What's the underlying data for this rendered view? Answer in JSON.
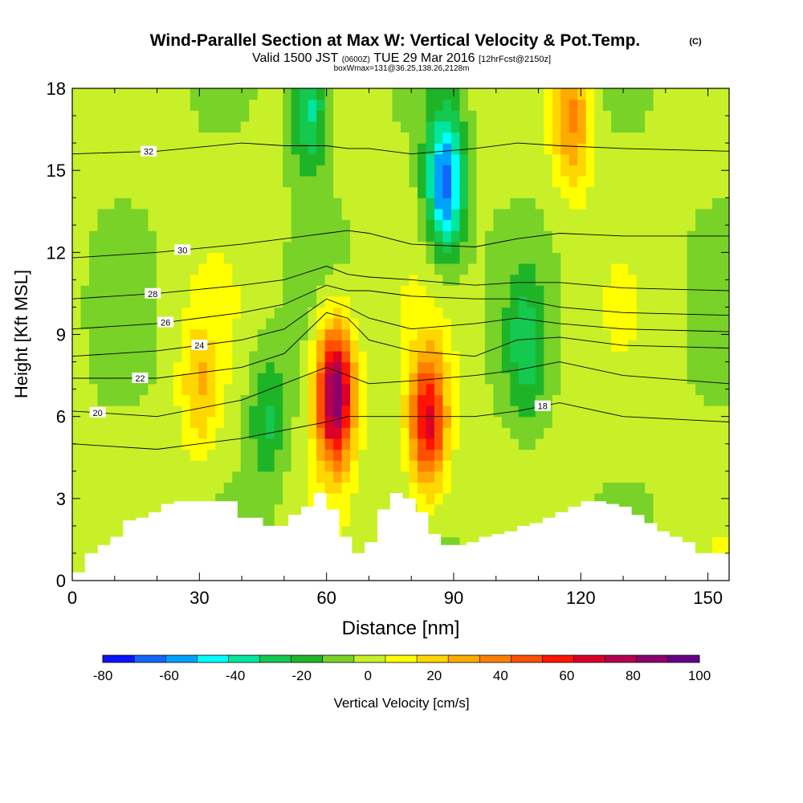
{
  "header": {
    "title_main": "Wind-Parallel Section at Max W: Vertical Velocity & Pot.Temp.",
    "title_tag": "(C)",
    "valid_prefix": "Valid 1500 JST",
    "valid_utc": "(0600Z)",
    "valid_date": "TUE 29 Mar 2016",
    "valid_fcst": "[12hrFcst@2150z]",
    "box_info": "boxWmax=131@36.25,138.26,2128m"
  },
  "chart_data": {
    "type": "heatmap",
    "xlabel": "Distance [nm]",
    "ylabel": "Height [Kft MSL]",
    "xlim": [
      0,
      155
    ],
    "ylim": [
      0,
      18
    ],
    "x_ticks": [
      "0",
      "30",
      "60",
      "90",
      "120",
      "150"
    ],
    "y_ticks": [
      "0",
      "3",
      "6",
      "9",
      "12",
      "15",
      "18"
    ],
    "colorbar": {
      "label": "Vertical Velocity [cm/s]",
      "tick_labels": [
        "-80",
        "-60",
        "-40",
        "-20",
        "0",
        "20",
        "40",
        "60",
        "80",
        "100"
      ],
      "levels": [
        -80,
        -70,
        -60,
        -50,
        -40,
        -30,
        -20,
        -10,
        0,
        10,
        20,
        30,
        40,
        50,
        60,
        70,
        80,
        90,
        100
      ],
      "colors": [
        "#0a14ff",
        "#1464ff",
        "#00a0ff",
        "#00ffff",
        "#00e6a0",
        "#14c850",
        "#1eb428",
        "#78d228",
        "#c8f028",
        "#ffff00",
        "#ffd700",
        "#ffaa00",
        "#ff8000",
        "#ff5000",
        "#ff1400",
        "#dc0028",
        "#b40050",
        "#8c006e",
        "#64008c"
      ]
    },
    "vertical_velocity_features": [
      {
        "x": 62,
        "z": 6.8,
        "w": 100
      },
      {
        "x": 84,
        "z": 5.8,
        "w": 70
      },
      {
        "x": 56,
        "z": 17.5,
        "w": -40
      },
      {
        "x": 88,
        "z": 14.5,
        "w": -70
      },
      {
        "x": 30,
        "z": 7,
        "w": 25
      },
      {
        "x": 118,
        "z": 17,
        "w": 40
      },
      {
        "x": 107,
        "z": 8.5,
        "w": -25
      },
      {
        "x": 46,
        "z": 6,
        "w": -25
      }
    ],
    "terrain": {
      "x": [
        0,
        3,
        6,
        9,
        12,
        15,
        18,
        21,
        24,
        27,
        30,
        33,
        36,
        39,
        42,
        45,
        48,
        51,
        54,
        57,
        60,
        63,
        66,
        69,
        72,
        75,
        78,
        81,
        84,
        87,
        90,
        93,
        96,
        99,
        102,
        105,
        108,
        111,
        114,
        117,
        120,
        123,
        126,
        129,
        132,
        135,
        138,
        141,
        144,
        147,
        150,
        153,
        155
      ],
      "z": [
        0.3,
        1.0,
        1.3,
        1.6,
        2.2,
        2.3,
        2.5,
        2.8,
        2.9,
        2.9,
        2.9,
        2.9,
        2.9,
        2.3,
        2.3,
        2.0,
        2.0,
        2.4,
        2.7,
        3.2,
        2.6,
        1.6,
        1.0,
        1.4,
        2.6,
        3.2,
        3.0,
        2.5,
        1.7,
        1.3,
        1.3,
        1.4,
        1.6,
        1.7,
        1.8,
        2.0,
        2.1,
        2.3,
        2.5,
        2.7,
        2.9,
        2.9,
        2.8,
        2.7,
        2.4,
        2.1,
        1.8,
        1.6,
        1.4,
        1.0,
        1.0,
        1.0,
        1.0
      ]
    },
    "theta_contours": {
      "x": [
        0,
        20,
        40,
        50,
        60,
        65,
        70,
        80,
        95,
        105,
        115,
        130,
        155
      ],
      "levels": [
        {
          "value": 18,
          "label": "18",
          "label_x": 111,
          "z": [
            5.0,
            4.8,
            5.2,
            5.5,
            5.8,
            6.0,
            6.0,
            6.0,
            6.0,
            6.2,
            6.5,
            6.0,
            5.8
          ]
        },
        {
          "value": 20,
          "label": "20",
          "label_x": 6,
          "z": [
            6.2,
            6.0,
            6.6,
            7.2,
            7.8,
            7.5,
            7.2,
            7.3,
            7.5,
            7.7,
            8.0,
            7.5,
            7.2
          ]
        },
        {
          "value": 22,
          "label": "22",
          "label_x": 16,
          "z": [
            7.4,
            7.4,
            7.8,
            8.3,
            9.8,
            9.6,
            8.8,
            8.4,
            8.2,
            8.8,
            8.9,
            8.6,
            8.5
          ]
        },
        {
          "value": 24,
          "label": "24",
          "label_x": 30,
          "z": [
            8.2,
            8.4,
            8.8,
            9.2,
            10.3,
            10.0,
            9.6,
            9.2,
            9.4,
            9.6,
            9.4,
            9.2,
            9.1
          ]
        },
        {
          "value": 26,
          "label": "26",
          "label_x": 22,
          "z": [
            9.2,
            9.4,
            9.8,
            10.1,
            10.8,
            10.6,
            10.6,
            10.4,
            10.3,
            10.3,
            10.0,
            9.8,
            9.7
          ]
        },
        {
          "value": 28,
          "label": "28",
          "label_x": 19,
          "z": [
            10.3,
            10.5,
            10.8,
            11.0,
            11.5,
            11.2,
            11.1,
            11.0,
            10.8,
            10.9,
            10.9,
            10.7,
            10.6
          ]
        },
        {
          "value": 30,
          "label": "30",
          "label_x": 26,
          "z": [
            11.8,
            12.0,
            12.3,
            12.5,
            12.7,
            12.8,
            12.7,
            12.3,
            12.2,
            12.5,
            12.7,
            12.6,
            12.6
          ]
        },
        {
          "value": 32,
          "label": "32",
          "label_x": 18,
          "z": [
            15.6,
            15.7,
            16.0,
            15.9,
            15.9,
            15.8,
            15.8,
            15.6,
            15.8,
            16.0,
            15.9,
            15.8,
            15.7
          ]
        }
      ]
    }
  }
}
